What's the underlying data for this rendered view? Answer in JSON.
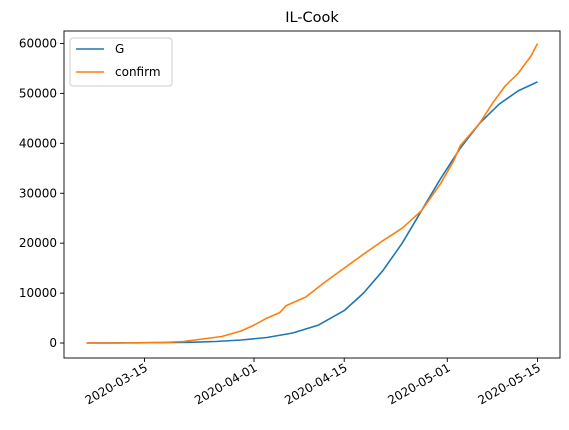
{
  "chart_data": {
    "type": "line",
    "title": "IL-Cook",
    "xlabel": "",
    "ylabel": "",
    "x_axis": {
      "type": "date",
      "range": [
        "2020-03-06",
        "2020-05-15"
      ],
      "ticks": [
        "2020-03-15",
        "2020-04-01",
        "2020-04-15",
        "2020-05-01",
        "2020-05-15"
      ]
    },
    "y_axis": {
      "range": [
        -3000,
        62500
      ],
      "ticks": [
        0,
        10000,
        20000,
        30000,
        40000,
        50000,
        60000
      ],
      "tick_labels": [
        "0",
        "10000",
        "20000",
        "30000",
        "40000",
        "50000",
        "60000"
      ]
    },
    "grid": false,
    "legend": {
      "placement": "top-left"
    },
    "series": [
      {
        "name": "G",
        "color": "#1f77b4",
        "points": [
          [
            "2020-03-06",
            10
          ],
          [
            "2020-03-10",
            20
          ],
          [
            "2020-03-14",
            40
          ],
          [
            "2020-03-18",
            80
          ],
          [
            "2020-03-22",
            150
          ],
          [
            "2020-03-26",
            300
          ],
          [
            "2020-03-30",
            600
          ],
          [
            "2020-04-03",
            1100
          ],
          [
            "2020-04-07",
            2000
          ],
          [
            "2020-04-11",
            3600
          ],
          [
            "2020-04-15",
            6500
          ],
          [
            "2020-04-18",
            10000
          ],
          [
            "2020-04-21",
            14500
          ],
          [
            "2020-04-24",
            20000
          ],
          [
            "2020-04-27",
            26500
          ],
          [
            "2020-04-30",
            33000
          ],
          [
            "2020-05-03",
            39000
          ],
          [
            "2020-05-06",
            44000
          ],
          [
            "2020-05-09",
            47800
          ],
          [
            "2020-05-12",
            50500
          ],
          [
            "2020-05-15",
            52300
          ]
        ]
      },
      {
        "name": "confirm",
        "color": "#ff7f0e",
        "points": [
          [
            "2020-03-06",
            5
          ],
          [
            "2020-03-10",
            10
          ],
          [
            "2020-03-14",
            40
          ],
          [
            "2020-03-18",
            120
          ],
          [
            "2020-03-21",
            300
          ],
          [
            "2020-03-24",
            800
          ],
          [
            "2020-03-27",
            1300
          ],
          [
            "2020-03-30",
            2400
          ],
          [
            "2020-04-01",
            3600
          ],
          [
            "2020-04-03",
            5000
          ],
          [
            "2020-04-05",
            6100
          ],
          [
            "2020-04-06",
            7500
          ],
          [
            "2020-04-09",
            9200
          ],
          [
            "2020-04-12",
            12200
          ],
          [
            "2020-04-15",
            15000
          ],
          [
            "2020-04-18",
            17800
          ],
          [
            "2020-04-21",
            20500
          ],
          [
            "2020-04-24",
            23000
          ],
          [
            "2020-04-27",
            26500
          ],
          [
            "2020-04-30",
            32000
          ],
          [
            "2020-05-02",
            36500
          ],
          [
            "2020-05-03",
            39500
          ],
          [
            "2020-05-06",
            44000
          ],
          [
            "2020-05-08",
            48000
          ],
          [
            "2020-05-10",
            51500
          ],
          [
            "2020-05-12",
            54000
          ],
          [
            "2020-05-14",
            57500
          ],
          [
            "2020-05-15",
            60000
          ]
        ]
      }
    ]
  }
}
